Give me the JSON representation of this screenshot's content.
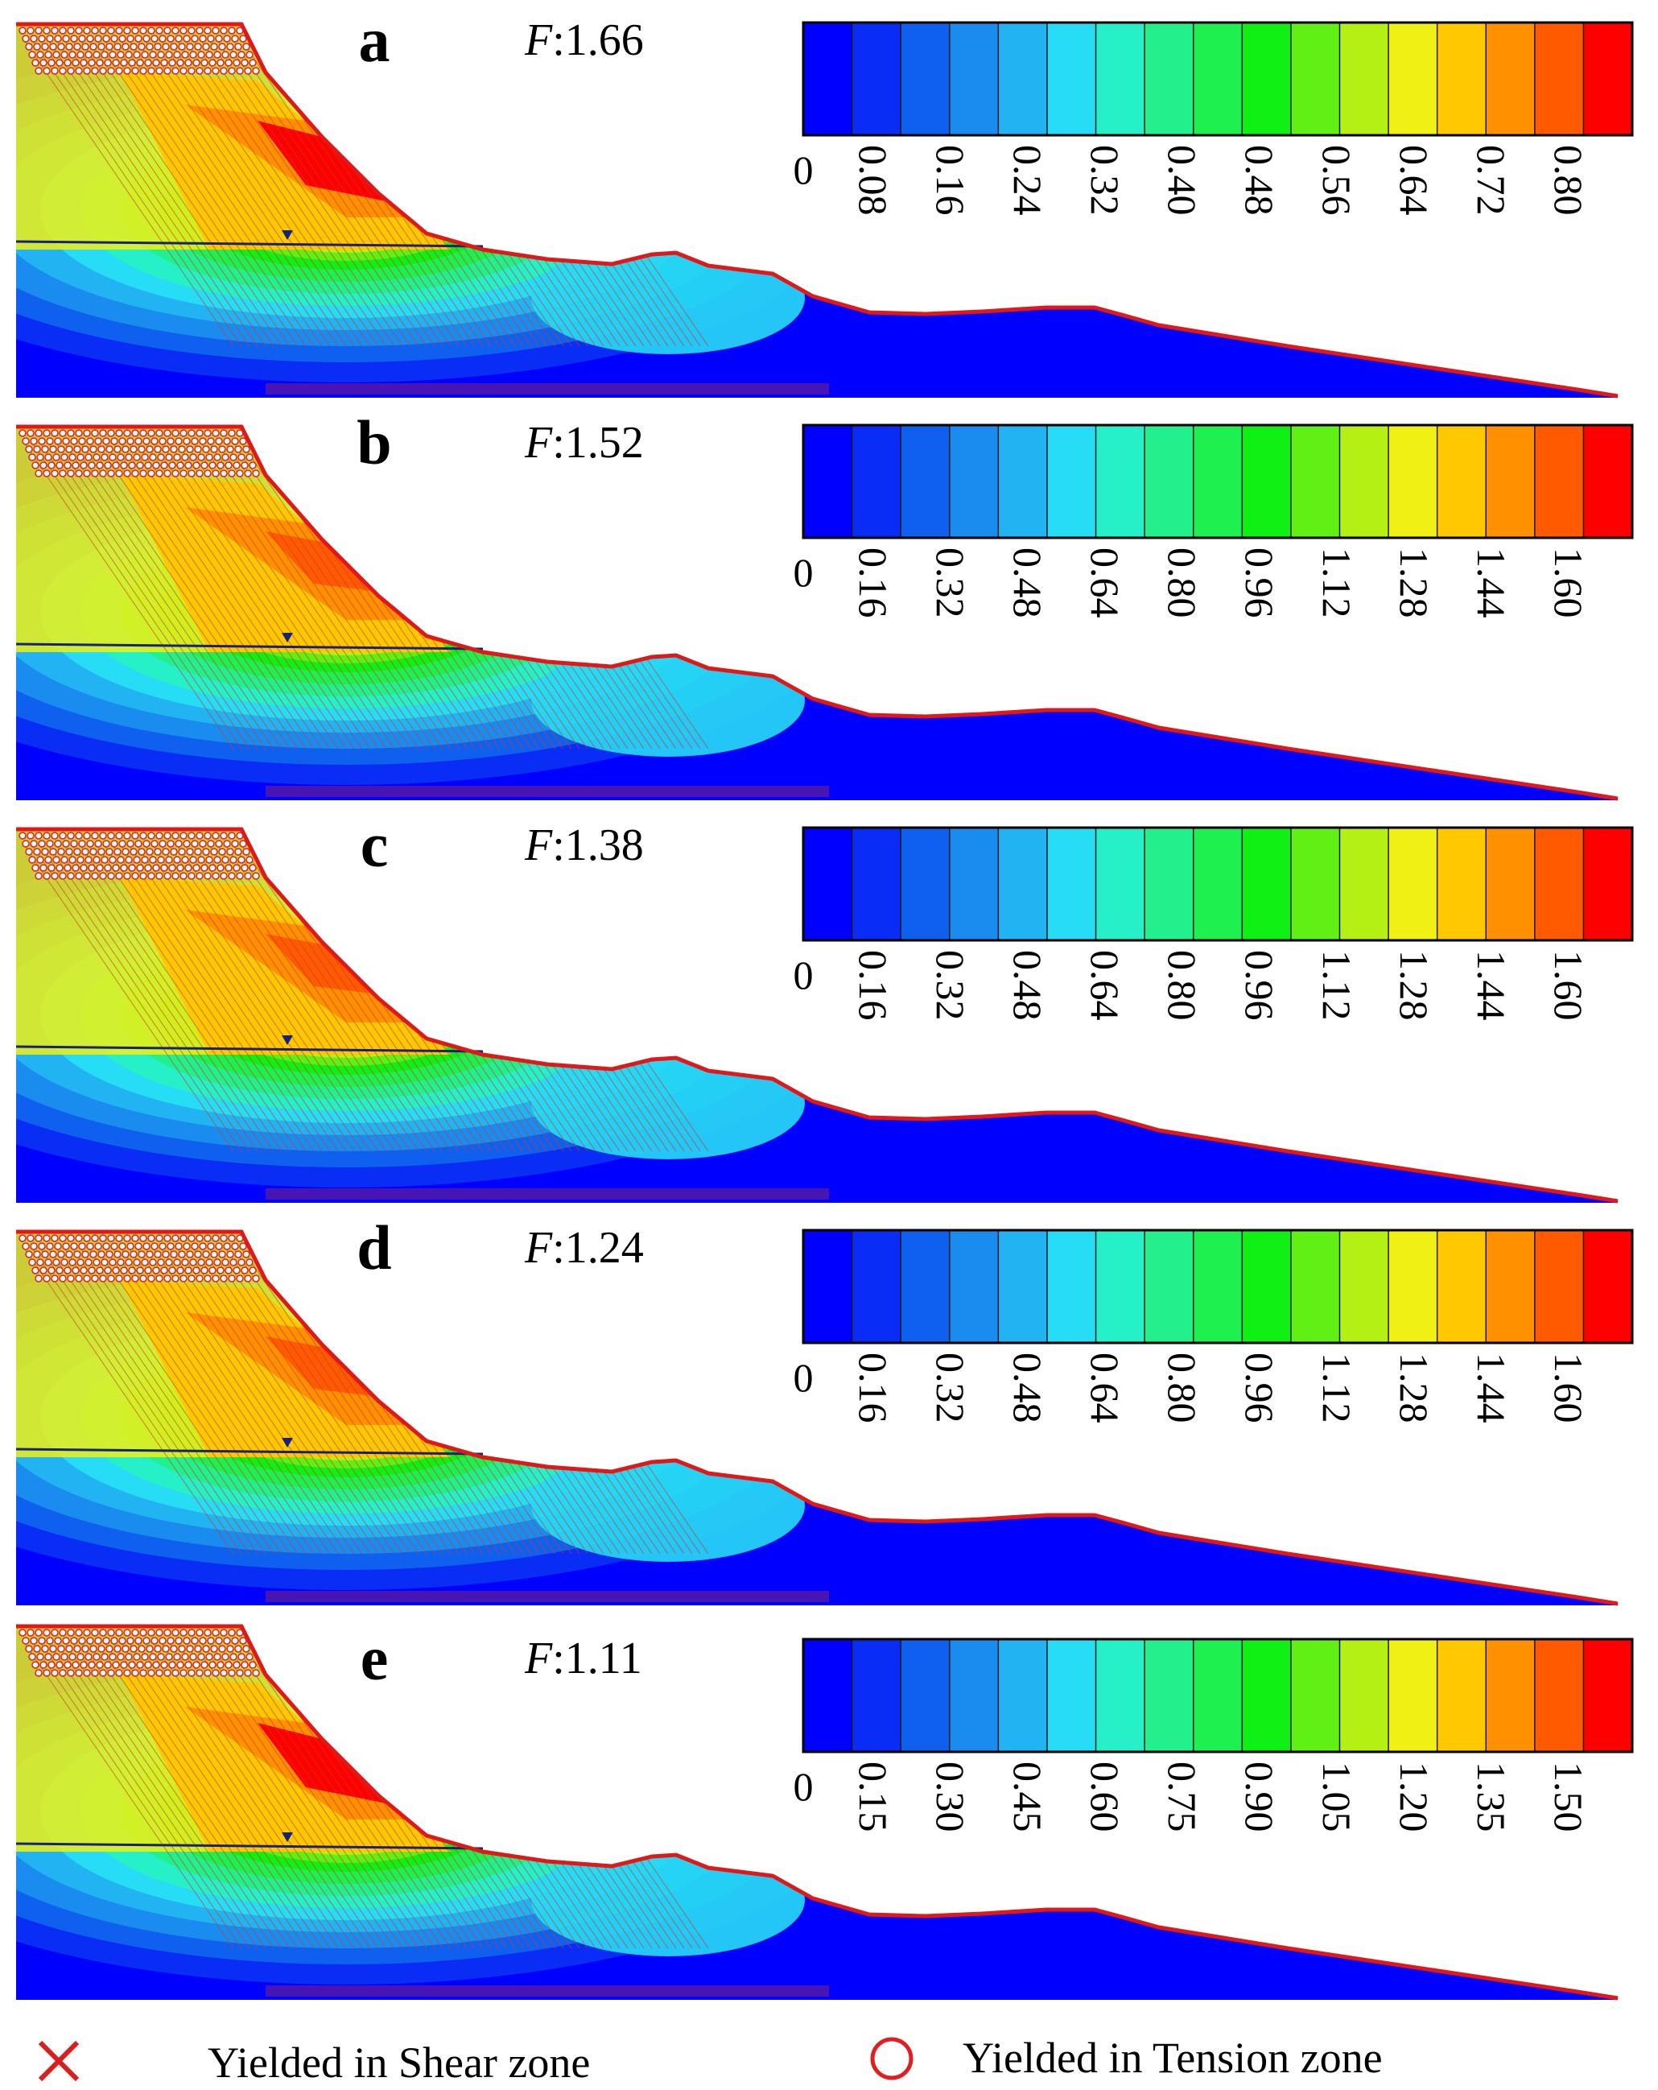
{
  "panels": [
    {
      "letter": "a",
      "fos_label": "F",
      "fos_value": ":1.66",
      "ticks": [
        "0",
        "0.08",
        "0.16",
        "0.24",
        "0.32",
        "0.40",
        "0.48",
        "0.56",
        "0.64",
        "0.72",
        "0.80"
      ]
    },
    {
      "letter": "b",
      "fos_label": "F",
      "fos_value": ":1.52",
      "ticks": [
        "0",
        "0.16",
        "0.32",
        "0.48",
        "0.64",
        "0.80",
        "0.96",
        "1.12",
        "1.28",
        "1.44",
        "1.60"
      ]
    },
    {
      "letter": "c",
      "fos_label": "F",
      "fos_value": ":1.38",
      "ticks": [
        "0",
        "0.16",
        "0.32",
        "0.48",
        "0.64",
        "0.80",
        "0.96",
        "1.12",
        "1.28",
        "1.44",
        "1.60"
      ]
    },
    {
      "letter": "d",
      "fos_label": "F",
      "fos_value": ":1.24",
      "ticks": [
        "0",
        "0.16",
        "0.32",
        "0.48",
        "0.64",
        "0.80",
        "0.96",
        "1.12",
        "1.28",
        "1.44",
        "1.60"
      ]
    },
    {
      "letter": "e",
      "fos_label": "F",
      "fos_value": ":1.11",
      "ticks": [
        "0",
        "0.15",
        "0.30",
        "0.45",
        "0.60",
        "0.75",
        "0.90",
        "1.05",
        "1.20",
        "1.35",
        "1.50"
      ]
    }
  ],
  "legend": {
    "shear_label": "Yielded in Shear zone",
    "tension_label": "Yielded in Tension zone"
  },
  "colors": {
    "scale": [
      "#0000ff",
      "#0a2df5",
      "#1060f0",
      "#1a8cf0",
      "#22b4f2",
      "#27dcf5",
      "#25f0c8",
      "#22f08c",
      "#1ef050",
      "#10f014",
      "#60f014",
      "#b4f014",
      "#f0f014",
      "#ffc800",
      "#ff9000",
      "#ff5a00",
      "#ff0000"
    ],
    "shear_marker": "#d81e1e",
    "tension_marker": "#e02020",
    "water_table": "#16227a"
  }
}
